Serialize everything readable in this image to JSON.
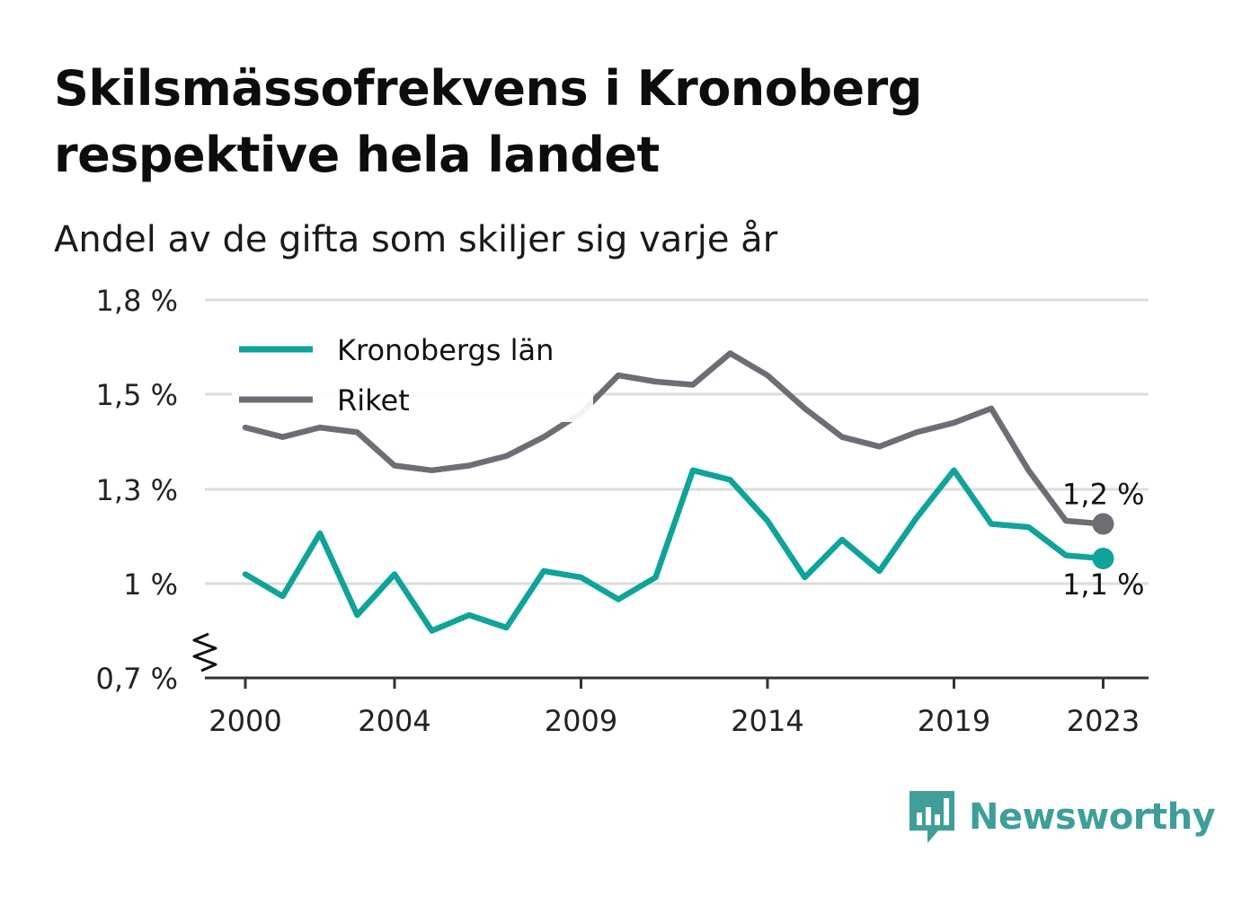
{
  "title": "Skilsmässofrekvens i Kronoberg respektive hela landet",
  "subtitle": "Andel av de gifta som skiljer sig varje år",
  "brand": {
    "name": "Newsworthy",
    "color": "#3f9e9a"
  },
  "chart_data": {
    "type": "line",
    "x": [
      2000,
      2001,
      2002,
      2003,
      2004,
      2005,
      2006,
      2007,
      2008,
      2009,
      2010,
      2011,
      2012,
      2013,
      2014,
      2015,
      2016,
      2017,
      2018,
      2019,
      2020,
      2021,
      2022,
      2023
    ],
    "series": [
      {
        "name": "Kronobergs län",
        "color": "#0fa39a",
        "values": [
          1.03,
          0.96,
          1.16,
          0.9,
          1.03,
          0.85,
          0.9,
          0.86,
          1.04,
          1.02,
          0.95,
          1.02,
          1.34,
          1.32,
          1.2,
          1.02,
          1.14,
          1.04,
          1.21,
          1.34,
          1.19,
          1.18,
          1.09,
          1.08
        ],
        "end_label": "1,1 %"
      },
      {
        "name": "Riket",
        "color": "#6d6d75",
        "values": [
          1.43,
          1.41,
          1.43,
          1.42,
          1.35,
          1.34,
          1.35,
          1.37,
          1.41,
          1.46,
          1.56,
          1.54,
          1.53,
          1.63,
          1.56,
          1.47,
          1.41,
          1.39,
          1.42,
          1.44,
          1.47,
          1.34,
          1.2,
          1.19
        ],
        "end_label": "1,2 %"
      }
    ],
    "yticks": [
      {
        "value": 0.7,
        "label": "0,7 %"
      },
      {
        "value": 1.0,
        "label": "1 %"
      },
      {
        "value": 1.3,
        "label": "1,3 %"
      },
      {
        "value": 1.5,
        "label": "1,5 %"
      },
      {
        "value": 1.8,
        "label": "1,8 %"
      }
    ],
    "xticks": [
      {
        "value": 2000,
        "label": "2000"
      },
      {
        "value": 2004,
        "label": "2004"
      },
      {
        "value": 2009,
        "label": "2009"
      },
      {
        "value": 2014,
        "label": "2014"
      },
      {
        "value": 2019,
        "label": "2019"
      },
      {
        "value": 2023,
        "label": "2023"
      }
    ],
    "y_axis_break": true,
    "grid": true,
    "legend": "top-left"
  }
}
